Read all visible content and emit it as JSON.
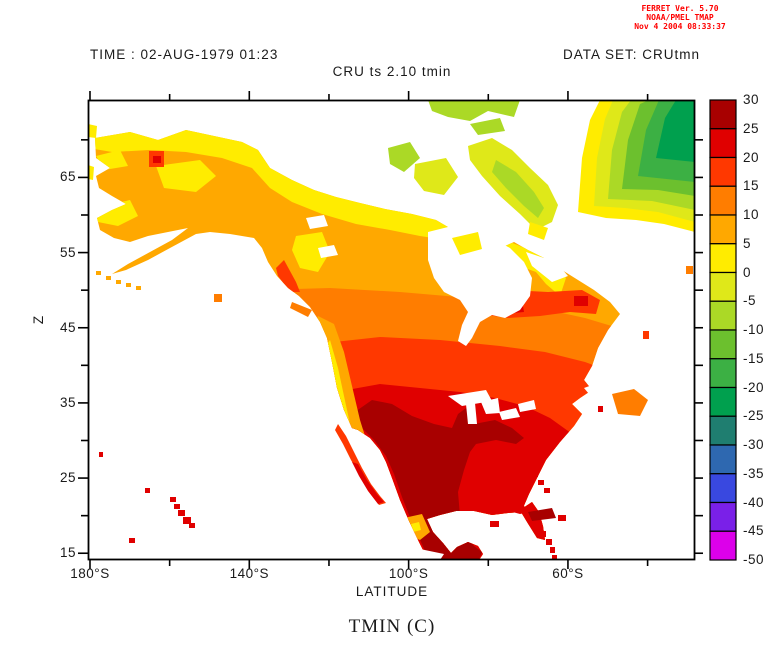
{
  "ferret_credit": {
    "lines": [
      "FERRET Ver. 5.70",
      "NOAA/PMEL TMAP",
      "Nov  4 2004 08:33:37"
    ],
    "color": "#ff0000"
  },
  "header": {
    "time_label": "TIME : 02-AUG-1979 01:23",
    "dataset_label": "DATA SET: CRUtmn",
    "title": "CRU ts 2.10 tmin"
  },
  "caption": "TMIN (C)",
  "axes": {
    "x": {
      "label": "LATITUDE",
      "major_ticks": [
        {
          "value": 180,
          "label": "180°S"
        },
        {
          "value": 140,
          "label": "140°S"
        },
        {
          "value": 100,
          "label": "100°S"
        },
        {
          "value": 60,
          "label": "60°S"
        }
      ],
      "minor_tick_values": [
        160,
        120,
        80,
        40
      ],
      "range": [
        180.5,
        28.1
      ]
    },
    "y": {
      "label": "Z",
      "major_ticks": [
        {
          "value": 65,
          "label": "65"
        },
        {
          "value": 55,
          "label": "55"
        },
        {
          "value": 45,
          "label": "45"
        },
        {
          "value": 35,
          "label": "35"
        },
        {
          "value": 25,
          "label": "25"
        },
        {
          "value": 15,
          "label": "15"
        }
      ],
      "minor_tick_values": [
        70,
        60,
        50,
        40,
        30,
        20
      ],
      "range": [
        14.1,
        75.3
      ]
    }
  },
  "colorbar": {
    "max": 30,
    "min": -50,
    "step": 5,
    "tick_labels": [
      "30",
      "25",
      "20",
      "15",
      "10",
      "5",
      "0",
      "-5",
      "-10",
      "-15",
      "-20",
      "-25",
      "-30",
      "-35",
      "-40",
      "-45",
      "-50"
    ],
    "colors_top_to_bottom": [
      "#a80000",
      "#e00000",
      "#ff3800",
      "#ff7d00",
      "#ffa800",
      "#ffec00",
      "#dfe819",
      "#abd926",
      "#6cc02e",
      "#3cb044",
      "#00a04e",
      "#1f7e70",
      "#2e68b0",
      "#3948e0",
      "#7a20e8",
      "#dc00ea"
    ],
    "ocean_color": "#ffffff"
  },
  "chart_data": {
    "type": "heatmap",
    "subtype": "filled-contour-map",
    "variable": "tmin",
    "units": "C",
    "title": "CRU ts 2.10 tmin",
    "dataset": "CRUtmn",
    "time": "02-AUG-1979 01:23",
    "geographic_region": "North America (Alaska, Canada, Greenland, USA, Mexico, Central America, Caribbean, Hawaii)",
    "levels_c": {
      "min": -50,
      "max": 30,
      "step": 5
    },
    "xlabel": "LATITUDE",
    "ylabel": "Z",
    "x_tick_labels": [
      "180°S",
      "140°S",
      "100°S",
      "60°S"
    ],
    "y_tick_labels": [
      65,
      55,
      45,
      35,
      25,
      15
    ],
    "grid": false,
    "legend_position": "right-colorbar",
    "regions_approx": [
      {
        "name": "Greenland interior",
        "tmin_c": "-15 to -25"
      },
      {
        "name": "Greenland coastal fringe",
        "tmin_c": "0 to -15"
      },
      {
        "name": "Canadian Arctic islands",
        "tmin_c": "0 to -10"
      },
      {
        "name": "Arctic mainland coast",
        "tmin_c": "0 to 5"
      },
      {
        "name": "Alaska interior",
        "tmin_c": "5 to 10"
      },
      {
        "name": "Central Canada",
        "tmin_c": "5 to 15"
      },
      {
        "name": "Southern Canada / northern US",
        "tmin_c": "15 to 20"
      },
      {
        "name": "Central and eastern US",
        "tmin_c": "20 to 25"
      },
      {
        "name": "Southwestern US, Texas, Gulf states",
        "tmin_c": "25 to 30"
      },
      {
        "name": "Mexico interior, Yucatan, Caribbean islands",
        "tmin_c": "25 to 30"
      },
      {
        "name": "Rocky Mountain cordillera",
        "tmin_c": "0 to 10"
      },
      {
        "name": "Hawaii",
        "tmin_c": "20 to 25"
      }
    ]
  }
}
